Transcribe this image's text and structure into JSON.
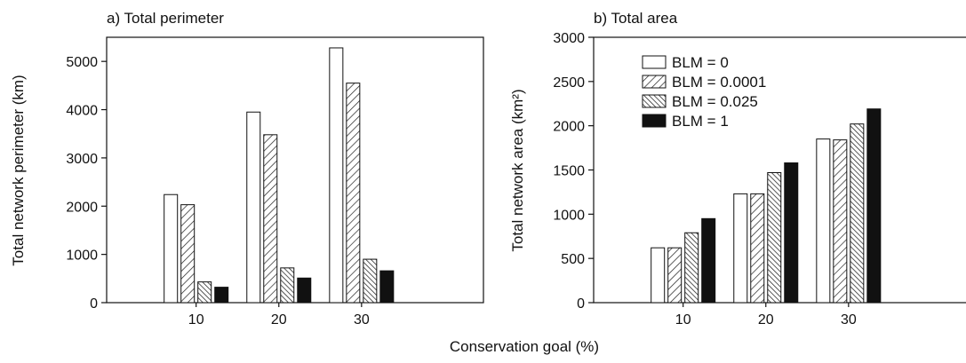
{
  "xlabel_shared": "Conservation goal (%)",
  "legend": [
    "BLM = 0",
    "BLM = 0.0001",
    "BLM = 0.025",
    "BLM = 1"
  ],
  "chart_data": [
    {
      "type": "bar",
      "title": "a) Total perimeter",
      "xlabel": "Conservation goal (%)",
      "ylabel": "Total network perimeter (km)",
      "ylim": [
        0,
        5500
      ],
      "yticks": [
        0,
        1000,
        2000,
        3000,
        4000,
        5000
      ],
      "categories": [
        "10",
        "20",
        "30"
      ],
      "series": [
        {
          "name": "BLM = 0",
          "values": [
            2240,
            3950,
            5280
          ]
        },
        {
          "name": "BLM = 0.0001",
          "values": [
            2030,
            3480,
            4550
          ]
        },
        {
          "name": "BLM = 0.025",
          "values": [
            430,
            720,
            900
          ]
        },
        {
          "name": "BLM = 1",
          "values": [
            320,
            510,
            660
          ]
        }
      ],
      "grid": false
    },
    {
      "type": "bar",
      "title": "b) Total area",
      "xlabel": "Conservation goal (%)",
      "ylabel": "Total network area (km²)",
      "ylim": [
        0,
        3000
      ],
      "yticks": [
        0,
        500,
        1000,
        1500,
        2000,
        2500,
        3000
      ],
      "categories": [
        "10",
        "20",
        "30"
      ],
      "series": [
        {
          "name": "BLM = 0",
          "values": [
            620,
            1230,
            1850
          ]
        },
        {
          "name": "BLM = 0.0001",
          "values": [
            620,
            1230,
            1840
          ]
        },
        {
          "name": "BLM = 0.025",
          "values": [
            790,
            1470,
            2020
          ]
        },
        {
          "name": "BLM = 1",
          "values": [
            950,
            1580,
            2190
          ]
        }
      ],
      "legend_position": "top-left",
      "grid": false
    }
  ]
}
